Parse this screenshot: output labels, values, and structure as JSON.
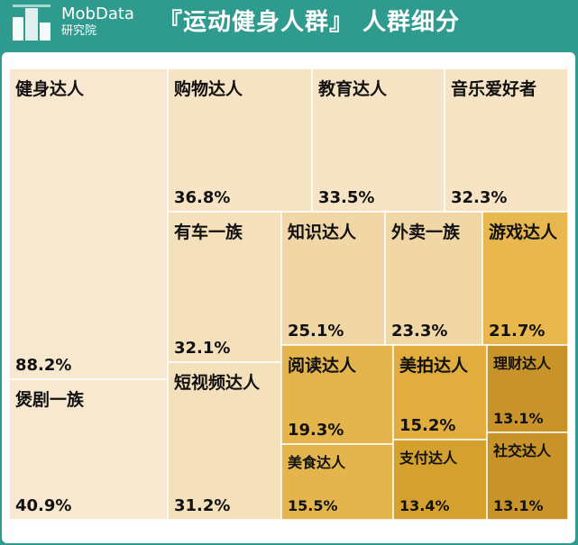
{
  "header": {
    "brand": "MobData",
    "brand_sub": "研究院",
    "title": "『运动健身人群』 人群细分"
  },
  "chart_data": {
    "type": "treemap",
    "value_format": "percent",
    "items": [
      {
        "label": "健身达人",
        "value": 88.2,
        "color": "#f8e8cf"
      },
      {
        "label": "煲剧一族",
        "value": 40.9,
        "color": "#f8e8cf"
      },
      {
        "label": "购物达人",
        "value": 36.8,
        "color": "#f6e4c5"
      },
      {
        "label": "教育达人",
        "value": 33.5,
        "color": "#f6e4c5"
      },
      {
        "label": "音乐爱好者",
        "value": 32.3,
        "color": "#f6e4c5"
      },
      {
        "label": "有车一族",
        "value": 32.1,
        "color": "#f4e0bb"
      },
      {
        "label": "短视频达人",
        "value": 31.2,
        "color": "#f4e0bb"
      },
      {
        "label": "知识达人",
        "value": 25.1,
        "color": "#f1d7a6"
      },
      {
        "label": "外卖一族",
        "value": 23.3,
        "color": "#f1d7a6"
      },
      {
        "label": "游戏达人",
        "value": 21.7,
        "color": "#e8b84f"
      },
      {
        "label": "阅读达人",
        "value": 19.3,
        "color": "#e4b44d"
      },
      {
        "label": "美食达人",
        "value": 15.5,
        "color": "#e4b44d"
      },
      {
        "label": "美拍达人",
        "value": 15.2,
        "color": "#e1ad3e"
      },
      {
        "label": "支付达人",
        "value": 13.4,
        "color": "#d4a12e"
      },
      {
        "label": "理财达人",
        "value": 13.1,
        "color": "#c8942a"
      },
      {
        "label": "社交达人",
        "value": 13.1,
        "color": "#c8942a"
      }
    ]
  }
}
